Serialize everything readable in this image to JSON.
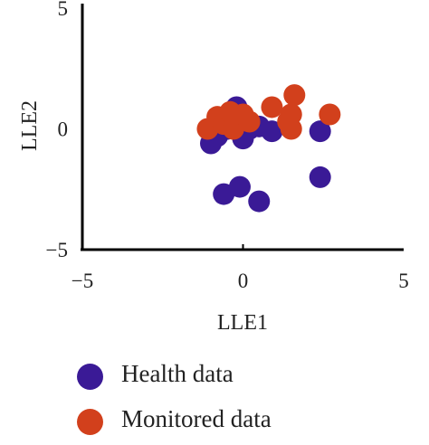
{
  "chart_data": {
    "type": "scatter",
    "xlabel": "LLE1",
    "ylabel": "LLE2",
    "xlim": [
      -5,
      5
    ],
    "ylim": [
      -5,
      5
    ],
    "xticks": [
      -5,
      0,
      5
    ],
    "yticks": [
      5,
      0,
      -5
    ],
    "grid": false,
    "legend_position": "bottom",
    "series": [
      {
        "name": "Health data",
        "color": "#3a1a96",
        "points": [
          {
            "x": -1.0,
            "y": -0.6
          },
          {
            "x": -0.8,
            "y": -0.3
          },
          {
            "x": -0.5,
            "y": 0.0
          },
          {
            "x": -0.3,
            "y": 0.4
          },
          {
            "x": -0.2,
            "y": 0.9
          },
          {
            "x": 0.0,
            "y": -0.4
          },
          {
            "x": 0.2,
            "y": 0.0
          },
          {
            "x": 0.5,
            "y": 0.1
          },
          {
            "x": 0.9,
            "y": -0.1
          },
          {
            "x": 2.4,
            "y": -0.1
          },
          {
            "x": -0.6,
            "y": -2.7
          },
          {
            "x": -0.1,
            "y": -2.4
          },
          {
            "x": 0.5,
            "y": -3.0
          },
          {
            "x": 2.4,
            "y": -2.0
          }
        ]
      },
      {
        "name": "Monitored data",
        "color": "#d2401c",
        "points": [
          {
            "x": -1.1,
            "y": 0.0
          },
          {
            "x": -0.8,
            "y": 0.5
          },
          {
            "x": -0.6,
            "y": 0.2
          },
          {
            "x": -0.4,
            "y": 0.7
          },
          {
            "x": -0.3,
            "y": 0.0
          },
          {
            "x": 0.0,
            "y": 0.6
          },
          {
            "x": 0.2,
            "y": 0.3
          },
          {
            "x": 0.9,
            "y": 0.9
          },
          {
            "x": 1.4,
            "y": 0.3
          },
          {
            "x": 1.5,
            "y": 0.0
          },
          {
            "x": 1.6,
            "y": 1.4
          },
          {
            "x": 1.5,
            "y": 0.6
          },
          {
            "x": 2.7,
            "y": 0.6
          }
        ]
      }
    ]
  }
}
